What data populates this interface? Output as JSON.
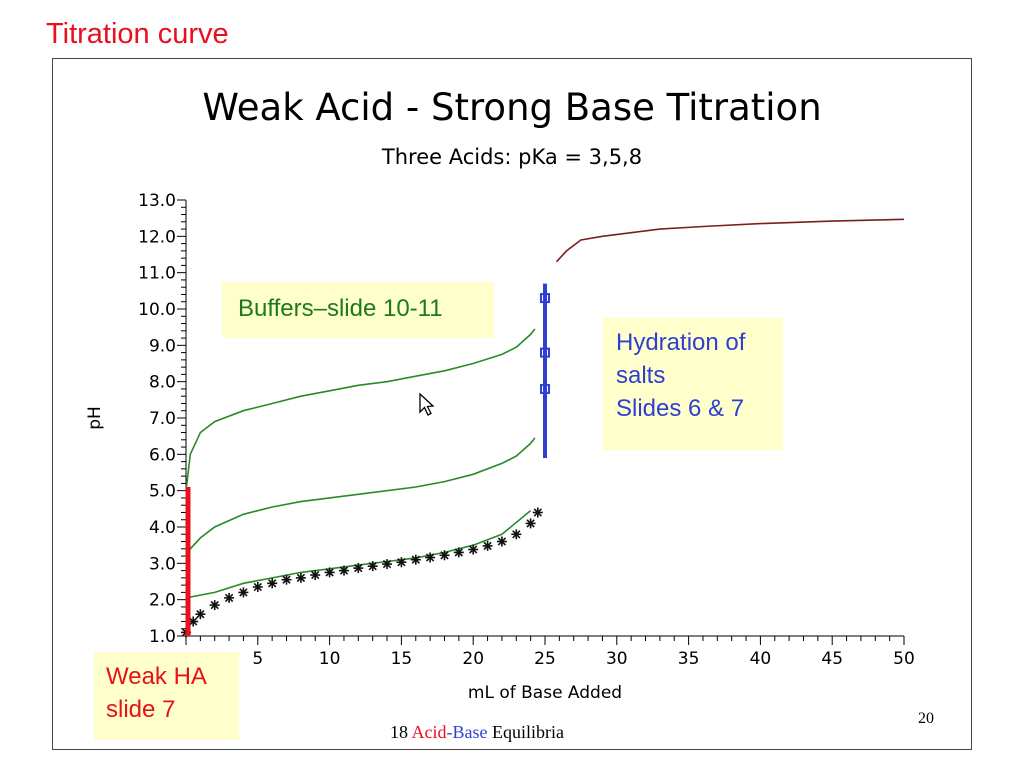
{
  "slide": {
    "heading": "Titration curve",
    "footer_number": "18",
    "footer_acid": "Acid",
    "footer_dash": "-",
    "footer_base": "Base",
    "footer_rest": "Equilibria",
    "page_number": "20"
  },
  "callouts": {
    "buffers": "Buffers–slide 10-11",
    "hydration": [
      "Hydration of",
      "salts",
      "Slides 6 & 7"
    ],
    "weak_ha": [
      "Weak HA",
      "slide 7"
    ]
  },
  "chart_data": {
    "type": "line",
    "title": "Weak Acid -  Strong Base Titration",
    "subtitle": "Three Acids:  pKa = 3,5,8",
    "xlabel": "mL of Base Added",
    "ylabel": "pH",
    "xlim": [
      0,
      50
    ],
    "ylim": [
      1.0,
      13.0
    ],
    "x_ticks": [
      5,
      10,
      15,
      20,
      25,
      30,
      35,
      40,
      45,
      50
    ],
    "y_ticks": [
      "1.0",
      "2.0",
      "3.0",
      "4.0",
      "5.0",
      "6.0",
      "7.0",
      "8.0",
      "9.0",
      "10.0",
      "11.0",
      "12.0",
      "13.0"
    ],
    "grid": false,
    "series": [
      {
        "color": "#2a8a2a",
        "points": [
          [
            0,
            5.0
          ],
          [
            0.3,
            6.0
          ],
          [
            1,
            6.6
          ],
          [
            2,
            6.9
          ],
          [
            4,
            7.2
          ],
          [
            6,
            7.4
          ],
          [
            8,
            7.6
          ],
          [
            10,
            7.75
          ],
          [
            12,
            7.9
          ],
          [
            14,
            8.0
          ],
          [
            16,
            8.15
          ],
          [
            18,
            8.3
          ],
          [
            20,
            8.5
          ],
          [
            22,
            8.75
          ],
          [
            23,
            8.95
          ],
          [
            24,
            9.3
          ],
          [
            24.3,
            9.45
          ]
        ]
      },
      {
        "color": "#2a8a2a",
        "points": [
          [
            0,
            3.0
          ],
          [
            0.3,
            3.4
          ],
          [
            1,
            3.7
          ],
          [
            2,
            4.0
          ],
          [
            4,
            4.35
          ],
          [
            6,
            4.55
          ],
          [
            8,
            4.7
          ],
          [
            10,
            4.8
          ],
          [
            12,
            4.9
          ],
          [
            14,
            5.0
          ],
          [
            16,
            5.1
          ],
          [
            18,
            5.25
          ],
          [
            20,
            5.45
          ],
          [
            22,
            5.75
          ],
          [
            23,
            5.95
          ],
          [
            24,
            6.3
          ],
          [
            24.3,
            6.45
          ]
        ]
      },
      {
        "color": "#2a8a2a",
        "points": [
          [
            0,
            2.05
          ],
          [
            2,
            2.2
          ],
          [
            4,
            2.45
          ],
          [
            6,
            2.6
          ],
          [
            8,
            2.75
          ],
          [
            10,
            2.85
          ],
          [
            12,
            2.95
          ],
          [
            14,
            3.05
          ],
          [
            16,
            3.15
          ],
          [
            18,
            3.3
          ],
          [
            20,
            3.5
          ],
          [
            22,
            3.8
          ],
          [
            24,
            4.45
          ]
        ]
      },
      {
        "color": "#7a2020",
        "points": [
          [
            25.8,
            11.3
          ],
          [
            26.5,
            11.6
          ],
          [
            27.5,
            11.9
          ],
          [
            29,
            12.0
          ],
          [
            31,
            12.1
          ],
          [
            33,
            12.2
          ],
          [
            36,
            12.27
          ],
          [
            40,
            12.35
          ],
          [
            45,
            12.42
          ],
          [
            50,
            12.47
          ]
        ]
      }
    ],
    "markers": {
      "symbol": "asterisk",
      "color": "#111111",
      "points": [
        [
          0,
          1.1
        ],
        [
          0.5,
          1.4
        ],
        [
          1,
          1.6
        ],
        [
          2,
          1.85
        ],
        [
          3,
          2.05
        ],
        [
          4,
          2.2
        ],
        [
          5,
          2.35
        ],
        [
          6,
          2.45
        ],
        [
          7,
          2.55
        ],
        [
          8,
          2.6
        ],
        [
          9,
          2.68
        ],
        [
          10,
          2.75
        ],
        [
          11,
          2.8
        ],
        [
          12,
          2.87
        ],
        [
          13,
          2.92
        ],
        [
          14,
          2.98
        ],
        [
          15,
          3.03
        ],
        [
          16,
          3.1
        ],
        [
          17,
          3.16
        ],
        [
          18,
          3.22
        ],
        [
          19,
          3.3
        ],
        [
          20,
          3.38
        ],
        [
          21,
          3.48
        ],
        [
          22,
          3.6
        ],
        [
          23,
          3.8
        ],
        [
          24,
          4.1
        ],
        [
          24.5,
          4.4
        ]
      ]
    },
    "equivalence_squares": [
      [
        25,
        10.3
      ],
      [
        25,
        8.8
      ],
      [
        25,
        7.8
      ]
    ],
    "red_bar": {
      "x": 0,
      "y_range": [
        1.0,
        5.1
      ],
      "color": "#e8101c"
    },
    "blue_bar": {
      "x": 25,
      "y_range": [
        5.9,
        10.7
      ],
      "color": "#2e3fd1"
    }
  }
}
